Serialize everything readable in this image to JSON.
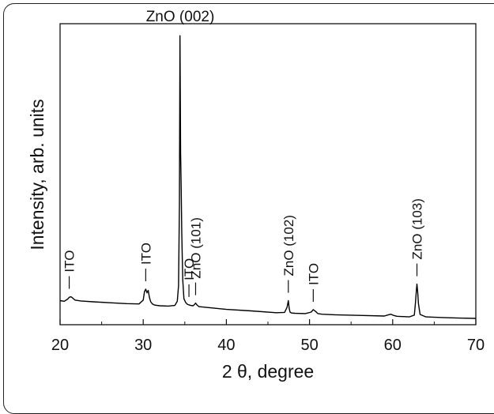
{
  "chart_data": {
    "type": "line",
    "title": "",
    "xlabel": "2 θ, degree",
    "ylabel": "Intensity, arb. units",
    "xlim": [
      20,
      70
    ],
    "ylim": [
      0,
      100
    ],
    "x_ticks": [
      "20",
      "30",
      "40",
      "50",
      "60",
      "70"
    ],
    "y_ticks": [],
    "grid": false,
    "legend": "none",
    "line_color": "#000000",
    "series": [
      {
        "x": [
          20.0,
          20.5,
          20.9,
          21.1,
          21.3,
          21.5,
          21.8,
          22.5,
          24.0,
          26.0,
          28.0,
          29.5,
          30.0,
          30.15,
          30.3,
          30.45,
          30.6,
          30.75,
          30.9,
          31.1,
          31.4,
          32.0,
          33.0,
          33.8,
          34.1,
          34.25,
          34.35,
          34.42,
          34.5,
          34.56,
          34.64,
          34.75,
          34.9,
          35.1,
          35.3,
          35.5,
          35.7,
          36.0,
          36.2,
          36.3,
          36.45,
          36.7,
          37.5,
          40.0,
          43.0,
          46.0,
          47.0,
          47.3,
          47.45,
          47.55,
          47.65,
          47.8,
          48.2,
          49.5,
          50.2,
          50.45,
          50.7,
          51.0,
          51.5,
          53.0,
          56.0,
          59.0,
          59.5,
          59.8,
          60.1,
          60.5,
          62.0,
          62.6,
          62.75,
          62.85,
          62.92,
          63.0,
          63.1,
          63.3,
          64.0,
          66.0,
          68.0,
          70.0
        ],
        "y": [
          8.0,
          7.8,
          8.5,
          9.1,
          9.3,
          8.9,
          8.2,
          7.9,
          7.6,
          7.3,
          7.0,
          6.9,
          8.2,
          11.0,
          11.8,
          10.6,
          11.4,
          9.0,
          7.6,
          6.9,
          6.5,
          6.3,
          6.2,
          6.4,
          7.8,
          13.0,
          40.0,
          96.0,
          57.0,
          46.0,
          30.0,
          15.0,
          8.6,
          7.4,
          6.8,
          6.6,
          6.4,
          6.3,
          6.8,
          7.2,
          6.6,
          6.0,
          5.8,
          5.1,
          4.6,
          4.0,
          4.1,
          5.8,
          8.0,
          5.6,
          4.2,
          3.9,
          3.8,
          3.7,
          4.2,
          5.0,
          4.5,
          3.7,
          3.5,
          3.3,
          3.1,
          2.9,
          3.3,
          3.5,
          3.1,
          2.8,
          2.6,
          3.2,
          7.5,
          11.5,
          13.5,
          11.0,
          7.0,
          3.4,
          2.6,
          2.4,
          2.2,
          2.1
        ]
      }
    ],
    "annotations": [
      {
        "text": "ZnO (002)",
        "x": 34.45,
        "y": 96.0,
        "rotation": 0
      },
      {
        "text": "ITO",
        "x": 21.1,
        "y": 9.3,
        "rotation": -90
      },
      {
        "text": "ITO",
        "x": 30.3,
        "y": 11.8,
        "rotation": -90
      },
      {
        "text": "ITO",
        "x": 35.5,
        "y": 6.6,
        "rotation": -90
      },
      {
        "text": "ZnO (101)",
        "x": 36.3,
        "y": 7.2,
        "rotation": -90
      },
      {
        "text": "ZnO (102)",
        "x": 47.45,
        "y": 8.0,
        "rotation": -90
      },
      {
        "text": "ITO",
        "x": 50.45,
        "y": 5.0,
        "rotation": -90
      },
      {
        "text": "ZnO (103)",
        "x": 62.92,
        "y": 13.5,
        "rotation": -90
      }
    ]
  }
}
